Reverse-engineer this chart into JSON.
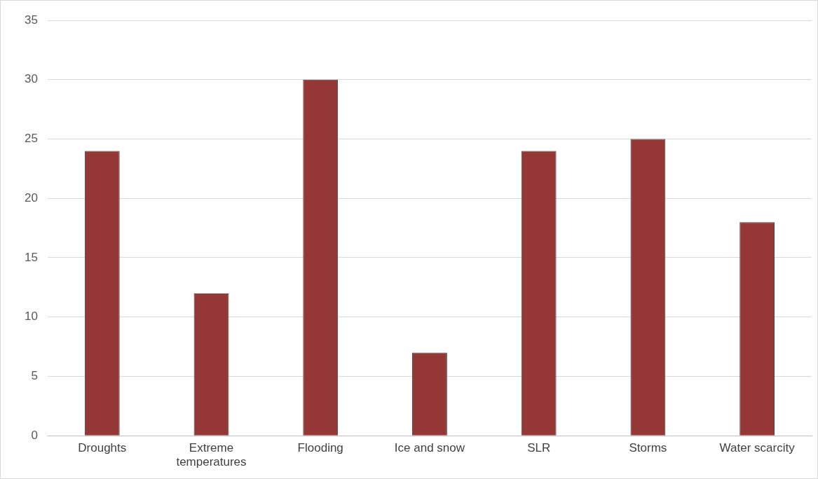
{
  "chart_data": {
    "type": "bar",
    "categories": [
      "Droughts",
      "Extreme temperatures",
      "Flooding",
      "Ice and snow",
      "SLR",
      "Storms",
      "Water scarcity"
    ],
    "values": [
      24,
      12,
      30,
      7,
      24,
      25,
      18
    ],
    "color": "#953735",
    "ylim": [
      0,
      35
    ],
    "yticks": [
      0,
      5,
      10,
      15,
      20,
      25,
      30,
      35
    ],
    "grid": "y",
    "legend": false
  }
}
